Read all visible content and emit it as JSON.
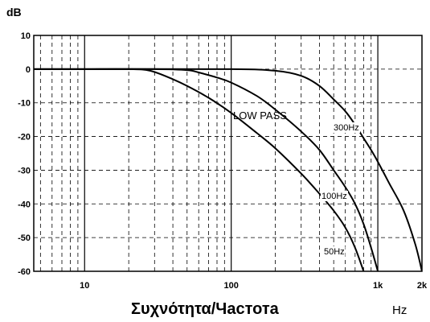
{
  "chart_data": {
    "type": "line",
    "title": "",
    "ylabel": "dB",
    "xlabel": "Συχνότητα/Частота",
    "xunit": "Hz",
    "xscale": "log",
    "xlim": [
      4.5,
      2000
    ],
    "ylim": [
      -60,
      10
    ],
    "grid": true,
    "annotation": "LOW PASS",
    "x_ticks": [
      {
        "value": 10,
        "label": "10"
      },
      {
        "value": 100,
        "label": "100"
      },
      {
        "value": 1000,
        "label": "1k"
      },
      {
        "value": 2000,
        "label": "2k"
      }
    ],
    "y_ticks": [
      {
        "value": 10,
        "label": "10"
      },
      {
        "value": 0,
        "label": "0"
      },
      {
        "value": -10,
        "label": "-10"
      },
      {
        "value": -20,
        "label": "-20"
      },
      {
        "value": -30,
        "label": "-30"
      },
      {
        "value": -40,
        "label": "-40"
      },
      {
        "value": -50,
        "label": "-50"
      },
      {
        "value": -60,
        "label": "-60"
      }
    ],
    "series": [
      {
        "name": "50Hz",
        "x": [
          4.5,
          10,
          20,
          28,
          40,
          50,
          70,
          100,
          150,
          200,
          300,
          400,
          500,
          600,
          700,
          800
        ],
        "y": [
          0,
          0,
          0,
          -0.5,
          -3,
          -5,
          -8.5,
          -13,
          -19,
          -23.5,
          -31,
          -37,
          -42,
          -47,
          -53,
          -60
        ]
      },
      {
        "name": "100Hz",
        "x": [
          4.5,
          10,
          30,
          50,
          60,
          80,
          100,
          150,
          200,
          300,
          400,
          500,
          600,
          700,
          800,
          900,
          1000
        ],
        "y": [
          0,
          0,
          0,
          -0.3,
          -1,
          -2.5,
          -4,
          -8,
          -12,
          -18.5,
          -24,
          -30,
          -35,
          -40,
          -46,
          -53,
          -60
        ]
      },
      {
        "name": "300Hz",
        "x": [
          4.5,
          10,
          100,
          200,
          300,
          400,
          500,
          600,
          700,
          800,
          900,
          1000,
          1200,
          1500,
          1800,
          2000
        ],
        "y": [
          0,
          0,
          0,
          -0.5,
          -2,
          -5,
          -9,
          -12.5,
          -16.5,
          -20.5,
          -24,
          -27.5,
          -34,
          -42,
          -52,
          -60
        ]
      }
    ]
  }
}
